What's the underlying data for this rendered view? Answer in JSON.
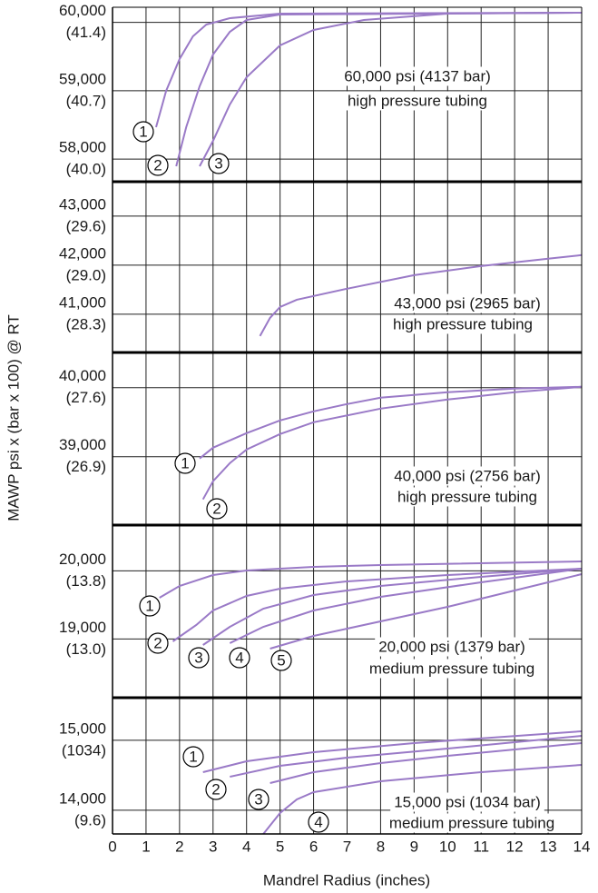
{
  "chart_data": [
    {
      "type": "line",
      "ylabel": "MAWP psi x (bar x 100) @ RT",
      "xlim": [
        0,
        14
      ],
      "ylim": [
        57670,
        60220
      ],
      "yticks": [
        {
          "value": 60000,
          "label": "60,000",
          "bar_label": "(41.4)"
        },
        {
          "value": 59000,
          "label": "59,000",
          "bar_label": "(40.7)"
        },
        {
          "value": 58000,
          "label": "58,000",
          "bar_label": "(40.0)"
        }
      ],
      "annotations": [
        "60,000 psi (4137 bar)",
        "high pressure tubing"
      ],
      "series": [
        {
          "name": "1",
          "color": "#9a7ac7",
          "x": [
            1.3,
            1.6,
            2,
            2.4,
            2.8,
            3.5,
            5,
            14
          ],
          "values": [
            58467,
            58998,
            59463,
            59795,
            59968,
            60060,
            60127,
            60140
          ]
        },
        {
          "name": "2",
          "color": "#9a7ac7",
          "x": [
            1.9,
            2.2,
            2.6,
            3,
            3.5,
            4,
            5,
            14
          ],
          "values": [
            57896,
            58467,
            59065,
            59529,
            59862,
            60034,
            60114,
            60140
          ]
        },
        {
          "name": "3",
          "color": "#9a7ac7",
          "x": [
            2.6,
            3,
            3.5,
            4,
            5,
            6,
            7.5,
            10,
            14
          ],
          "values": [
            57896,
            58268,
            58799,
            59197,
            59662,
            59888,
            60034,
            60127,
            60140
          ]
        }
      ]
    },
    {
      "type": "line",
      "xlim": [
        0,
        14
      ],
      "ylim": [
        40220,
        43700
      ],
      "yticks": [
        {
          "value": 43000,
          "label": "43,000",
          "bar_label": "(29.6)"
        },
        {
          "value": 42000,
          "label": "42,000",
          "bar_label": "(29.0)"
        },
        {
          "value": 41000,
          "label": "41,000",
          "bar_label": "(28.3)"
        }
      ],
      "annotations": [
        "43,000 psi (2965 bar)",
        "high pressure tubing"
      ],
      "series": [
        {
          "color": "#9a7ac7",
          "x": [
            4.4,
            4.7,
            5,
            5.5,
            7,
            9,
            11,
            13,
            14
          ],
          "values": [
            40555,
            40926,
            41148,
            41296,
            41519,
            41796,
            41981,
            42130,
            42204
          ]
        }
      ]
    },
    {
      "type": "line",
      "xlim": [
        0,
        14
      ],
      "ylim": [
        38010,
        40510
      ],
      "yticks": [
        {
          "value": 40000,
          "label": "40,000",
          "bar_label": "(27.6)"
        },
        {
          "value": 39000,
          "label": "39,000",
          "bar_label": "(26.9)"
        }
      ],
      "annotations": [
        "40,000 psi (2756 bar)",
        "high pressure tubing"
      ],
      "series": [
        {
          "name": "1",
          "color": "#9a7ac7",
          "x": [
            2.6,
            3,
            4,
            5,
            6,
            7,
            8,
            10,
            12,
            14
          ],
          "values": [
            38974,
            39131,
            39342,
            39526,
            39658,
            39763,
            39855,
            39934,
            39987,
            40013
          ]
        },
        {
          "name": "2",
          "color": "#9a7ac7",
          "x": [
            2.7,
            3,
            3.5,
            4,
            5,
            6,
            8,
            10,
            12,
            14
          ],
          "values": [
            38382,
            38645,
            38908,
            39105,
            39329,
            39500,
            39697,
            39829,
            39934,
            40013
          ]
        }
      ]
    },
    {
      "type": "line",
      "xlim": [
        0,
        14
      ],
      "ylim": [
        18140,
        20670
      ],
      "yticks": [
        {
          "value": 20000,
          "label": "20,000",
          "bar_label": "(13.8)"
        },
        {
          "value": 19000,
          "label": "19,000",
          "bar_label": "(13.0)"
        }
      ],
      "annotations": [
        "20,000 psi (1379 bar)",
        "medium pressure tubing"
      ],
      "series": [
        {
          "name": "1",
          "color": "#9a7ac7",
          "x": [
            1.4,
            2,
            3,
            4,
            6,
            8,
            14
          ],
          "values": [
            19605,
            19778,
            19938,
            20004,
            20058,
            20084,
            20137
          ]
        },
        {
          "name": "2",
          "color": "#9a7ac7",
          "x": [
            1.8,
            2.5,
            3,
            4,
            5,
            7,
            10,
            14
          ],
          "values": [
            18966,
            19205,
            19418,
            19631,
            19738,
            19844,
            19938,
            20031
          ]
        },
        {
          "name": "3",
          "color": "#9a7ac7",
          "x": [
            2.7,
            3.5,
            4.5,
            6,
            8,
            11,
            14
          ],
          "values": [
            18912,
            19178,
            19445,
            19645,
            19778,
            19911,
            20031
          ]
        },
        {
          "name": "4",
          "color": "#9a7ac7",
          "x": [
            3.5,
            4.5,
            6,
            8,
            11,
            14
          ],
          "values": [
            18939,
            19178,
            19418,
            19618,
            19831,
            20031
          ]
        },
        {
          "name": "5",
          "color": "#9a7ac7",
          "x": [
            4.7,
            6,
            8,
            10,
            12,
            14
          ],
          "values": [
            18859,
            19045,
            19259,
            19472,
            19711,
            19951
          ]
        }
      ]
    },
    {
      "type": "line",
      "xlabel": "Mandrel Radius (inches)",
      "xlim": [
        0,
        14
      ],
      "xticks": [
        0,
        1,
        2,
        3,
        4,
        5,
        6,
        7,
        8,
        9,
        10,
        11,
        12,
        13,
        14
      ],
      "ylim": [
        13660,
        15610
      ],
      "yticks": [
        {
          "value": 15000,
          "label": "15,000",
          "bar_label": "(1034)"
        },
        {
          "value": 14000,
          "label": "14,000",
          "bar_label": "(9.6)"
        }
      ],
      "annotations": [
        "15,000 psi (1034 bar)",
        "medium pressure tubing"
      ],
      "series": [
        {
          "name": "1",
          "color": "#9a7ac7",
          "x": [
            2.7,
            4,
            6,
            9,
            14
          ],
          "values": [
            14544,
            14700,
            14830,
            14960,
            15129
          ]
        },
        {
          "name": "2",
          "color": "#9a7ac7",
          "x": [
            3.5,
            5,
            7,
            10,
            14
          ],
          "values": [
            14479,
            14635,
            14752,
            14882,
            15064
          ]
        },
        {
          "name": "3",
          "color": "#9a7ac7",
          "x": [
            4.7,
            6,
            8,
            10,
            14
          ],
          "values": [
            14388,
            14544,
            14674,
            14778,
            14960
          ]
        },
        {
          "name": "4",
          "color": "#9a7ac7",
          "x": [
            4.5,
            5,
            5.5,
            6,
            8,
            11,
            14
          ],
          "values": [
            13660,
            13959,
            14154,
            14258,
            14414,
            14544,
            14648
          ]
        }
      ]
    }
  ]
}
